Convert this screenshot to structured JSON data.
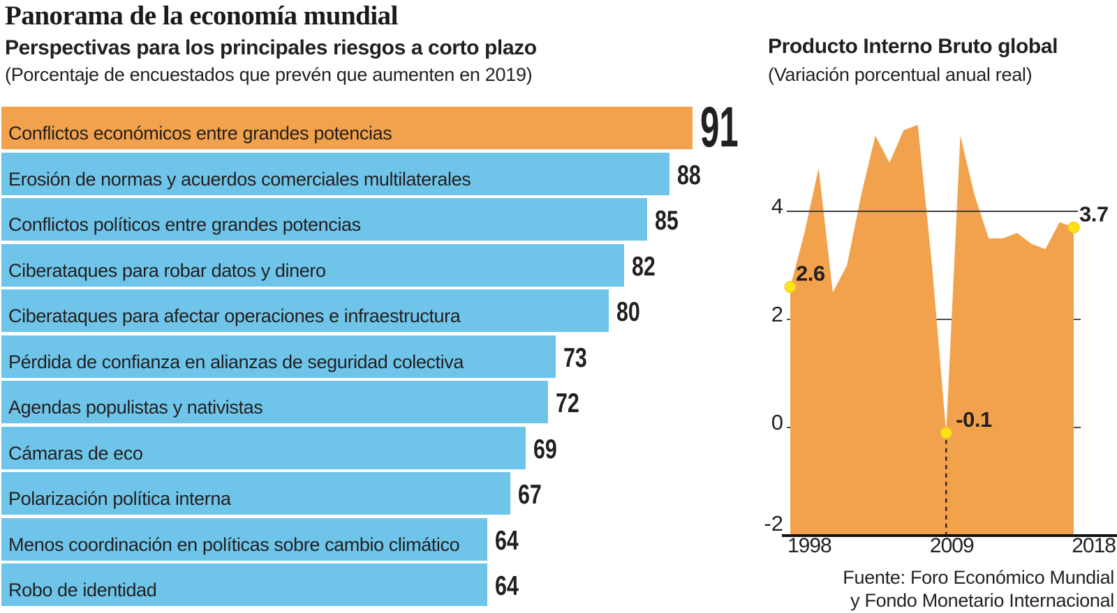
{
  "header": {
    "title": "Panorama de la economía mundial",
    "subtitle": "Perspectivas para los principales riesgos a corto plazo",
    "note": "(Porcentaje de encuestados que prevén que aumenten en 2019)"
  },
  "chart_data": [
    {
      "type": "bar",
      "orientation": "horizontal",
      "title": "Perspectivas para los principales riesgos a corto plazo",
      "unit": "Porcentaje de encuestados que prevén que aumenten en 2019",
      "xlim": [
        0,
        100
      ],
      "categories": [
        "Conflictos económicos entre grandes potencias",
        "Erosión de normas y acuerdos comerciales multilaterales",
        "Conflictos políticos entre grandes potencias",
        "Ciberataques para robar datos y dinero",
        "Ciberataques para afectar operaciones e infraestructura",
        "Pérdida de confianza en alianzas de seguridad colectiva",
        "Agendas populistas y nativistas",
        "Cámaras de eco",
        "Polarización política interna",
        "Menos coordinación en políticas sobre cambio climático",
        "Robo de identidad"
      ],
      "values": [
        91,
        88,
        85,
        82,
        80,
        73,
        72,
        69,
        67,
        64,
        64
      ],
      "highlight_index": 0,
      "bar_color": "#6FC5E9",
      "highlight_color": "#F2A24C",
      "grid": false,
      "legend": "none"
    },
    {
      "type": "area",
      "title": "Producto Interno Bruto global",
      "subtitle": "(Variación porcentual anual real)",
      "x": [
        1998,
        1999,
        2000,
        2001,
        2002,
        2003,
        2004,
        2005,
        2006,
        2007,
        2008,
        2009,
        2010,
        2011,
        2012,
        2013,
        2014,
        2015,
        2016,
        2017,
        2018
      ],
      "values": [
        2.6,
        3.6,
        4.8,
        2.5,
        3.0,
        4.3,
        5.4,
        4.9,
        5.5,
        5.6,
        3.0,
        -0.1,
        5.4,
        4.3,
        3.5,
        3.5,
        3.6,
        3.4,
        3.3,
        3.8,
        3.7
      ],
      "ylim": [
        -2,
        6
      ],
      "yticks": [
        4,
        2,
        0,
        -2
      ],
      "xticks": [
        1998,
        2009,
        2018
      ],
      "annotations": [
        {
          "x": 1998,
          "y": 2.6,
          "label": "2.6"
        },
        {
          "x": 2009,
          "y": -0.1,
          "label": "-0.1"
        },
        {
          "x": 2018,
          "y": 3.7,
          "label": "3.7"
        }
      ],
      "area_color": "#F2A24C",
      "dot_color": "#FFE214",
      "dot_edge_color": "#E9C51B",
      "grid_color": "#4d4d4d",
      "axis_color": "#111111",
      "legend": "none"
    }
  ],
  "source": {
    "line1": "Fuente: Foro Económico Mundial",
    "line2": "y Fondo Monetario Internacional"
  }
}
